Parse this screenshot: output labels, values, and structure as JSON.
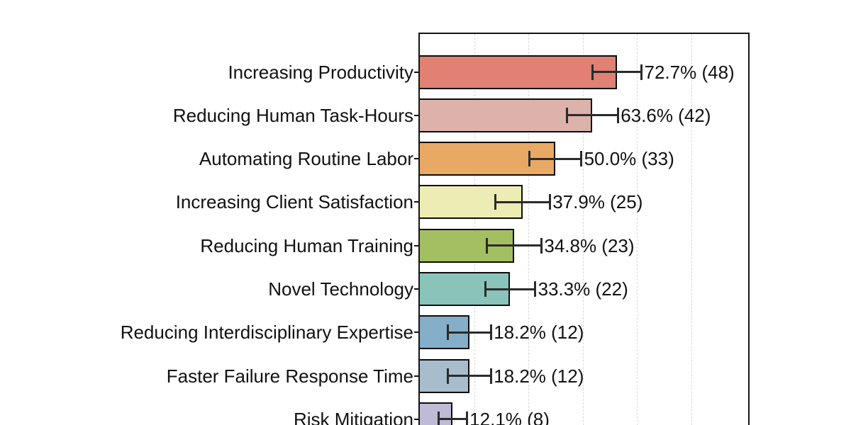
{
  "chart_data": {
    "type": "bar",
    "orientation": "horizontal",
    "title": "",
    "xlabel": "",
    "ylabel": "",
    "categories": [
      "Increasing Productivity",
      "Reducing Human Task-Hours",
      "Automating Routine Labor",
      "Increasing Client Satisfaction",
      "Reducing Human Training",
      "Novel Technology",
      "Reducing Interdisciplinary Expertise",
      "Faster Failure Response Time",
      "Risk Mitigation"
    ],
    "values_pct": [
      72.7,
      63.6,
      50.0,
      37.9,
      34.8,
      33.3,
      18.2,
      18.2,
      12.1
    ],
    "counts": [
      48,
      42,
      33,
      25,
      23,
      22,
      12,
      12,
      8
    ],
    "error_margins_pct": [
      9.0,
      9.4,
      9.5,
      10.0,
      10.0,
      9.2,
      8.0,
      8.0,
      5.2
    ],
    "value_labels": [
      "72.7% (48)",
      "63.6% (42)",
      "50.0% (33)",
      "37.9% (25)",
      "34.8% (23)",
      "33.3% (22)",
      "18.2% (12)",
      "18.2% (12)",
      "12.1% (8)"
    ],
    "bar_colors": [
      "#e08173",
      "#dcb2ab",
      "#e8a964",
      "#edecb4",
      "#a3bf62",
      "#8ac3ba",
      "#85aec8",
      "#a8bdcb",
      "#bfbad6"
    ],
    "xlim": [
      0,
      121.0
    ],
    "gridlines_pct": [
      20,
      40,
      60,
      80,
      100
    ],
    "grid_style": "vertical-dashed",
    "legend": "none",
    "error_bars": "horizontal, capped, centered on bar end"
  },
  "style": {
    "background": "#ffffff",
    "bar_border_color": "#0d0d0d",
    "plot_border_color": "#141414",
    "grid_color": "#d9d9d9",
    "error_bar_color": "#2b2b2b",
    "text_color": "#111111"
  }
}
